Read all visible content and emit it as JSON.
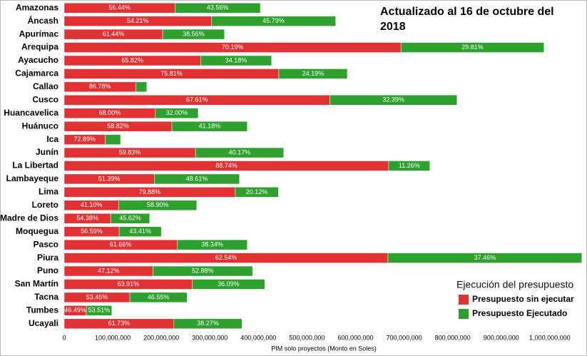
{
  "chart_data": {
    "type": "stacked-bar-horizontal",
    "title": "Actualizado al 16 de octubre del 2018",
    "xlabel": "PIM solo proyectos (Monto en Soles)",
    "legend_title": "Ejecución del presupuesto",
    "legend": "lower right",
    "categories": [
      "Amazonas",
      "Áncash",
      "Apurímac",
      "Arequipa",
      "Ayacucho",
      "Cajamarca",
      "Callao",
      "Cusco",
      "Huancavelica",
      "Huánuco",
      "Ica",
      "Junín",
      "La Libertad",
      "Lambayeque",
      "Lima",
      "Loreto",
      "Madre de Dios",
      "Moquegua",
      "Pasco",
      "Piura",
      "Puno",
      "San Martín",
      "Tacna",
      "Tumbes",
      "Ucayali"
    ],
    "series": [
      {
        "name": "Presupuesto sin ejecutar",
        "color": "#e03232",
        "values": [
          228000000,
          303000000,
          202800000,
          693500000,
          281000000,
          442000000,
          147500000,
          547000000,
          187700000,
          221800000,
          84600000,
          270400000,
          668200000,
          185500000,
          352300000,
          112200000,
          95700000,
          113200000,
          232500000,
          666700000,
          182800000,
          263900000,
          135200000,
          45600000,
          225900000
        ],
        "value_labels": [
          "56.44%",
          "54.21%",
          "61.44%",
          "70.19%",
          "65.82%",
          "75.81%",
          "86.78%",
          "67.61%",
          "68.00%",
          "58.82%",
          "72.89%",
          "59.83%",
          "88.74%",
          "51.39%",
          "79.88%",
          "41.10%",
          "54.38%",
          "56.59%",
          "61.66%",
          "62.54%",
          "47.12%",
          "63.91%",
          "53.45%",
          "46.49%",
          "61.73%"
        ]
      },
      {
        "name": "Presupuesto Ejecutado",
        "color": "#2ea02e",
        "values": [
          176000000,
          256000000,
          127200000,
          294500000,
          146000000,
          141000000,
          22500000,
          262000000,
          88300000,
          155200000,
          31400000,
          181600000,
          84800000,
          175500000,
          88700000,
          160800000,
          80300000,
          86800000,
          144500000,
          399300000,
          205200000,
          149100000,
          117800000,
          52400000,
          140100000
        ],
        "value_labels": [
          "43.56%",
          "45.79%",
          "38.56%",
          "29.81%",
          "34.18%",
          "24.19%",
          null,
          "32.39%",
          "32.00%",
          "41.18%",
          null,
          "40.17%",
          "11.26%",
          "48.61%",
          "20.12%",
          "58.90%",
          "45.62%",
          "43.41%",
          "38.34%",
          "37.46%",
          "52.88%",
          "36.09%",
          "46.55%",
          "53.51%",
          "38.27%"
        ]
      }
    ],
    "xlim": [
      0,
      1070000000
    ],
    "xticks": [
      0,
      {
        "value": 100000000,
        "label": "100,000,000"
      },
      {
        "value": 200000000,
        "label": "200,000,000"
      },
      {
        "value": 300000000,
        "label": "300,000,000"
      },
      {
        "value": 400000000,
        "label": "400,000,000"
      },
      {
        "value": 500000000,
        "label": "500,000,000"
      },
      {
        "value": 600000000,
        "label": "600,000,000"
      },
      {
        "value": 700000000,
        "label": "700,000,000"
      },
      {
        "value": 800000000,
        "label": "800,000,000"
      },
      {
        "value": 900000000,
        "label": "900,000,000"
      },
      {
        "value": 1000000000,
        "label": "1,000,000,000"
      }
    ]
  }
}
